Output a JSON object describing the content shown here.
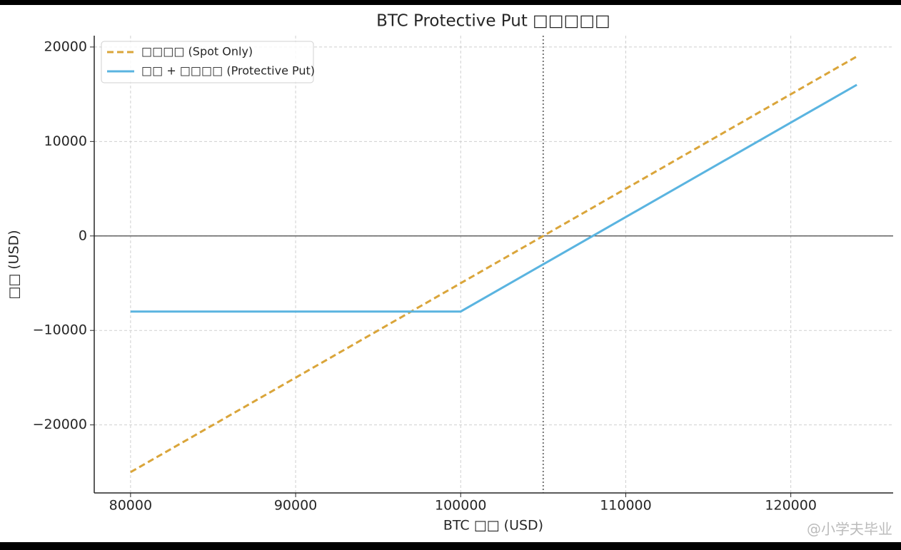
{
  "chart_data": {
    "type": "line",
    "title": "BTC Protective Put □□□□□",
    "x_label": "BTC □□ (USD)",
    "y_label": "□□ (USD)",
    "x": [
      80000,
      100000,
      124000
    ],
    "series": [
      {
        "name": "□□□□ (Spot Only)",
        "color": "#daa53a",
        "dashed": true,
        "values": [
          -25000,
          -5000,
          19000
        ]
      },
      {
        "name": "□□ + □□□□ (Protective Put)",
        "color": "#5ab4e0",
        "dashed": false,
        "values": [
          -8000,
          -8000,
          16000
        ]
      }
    ],
    "xlim": [
      77800,
      126200
    ],
    "ylim": [
      -27200,
      21200
    ],
    "xticks": [
      80000,
      90000,
      100000,
      110000,
      120000
    ],
    "yticks": [
      {
        "value": -20000,
        "label": "−20000"
      },
      {
        "value": -10000,
        "label": "−10000"
      },
      0,
      10000,
      20000
    ],
    "hline": 0,
    "vline": 105000,
    "grid": true,
    "legend": "upper left",
    "watermark": "@小学夫毕业"
  }
}
